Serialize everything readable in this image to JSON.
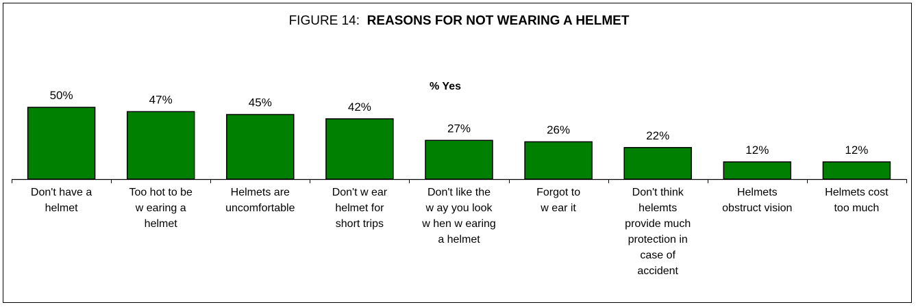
{
  "chart_data": {
    "type": "bar",
    "title_prefix": "FIGURE 14:",
    "title": "REASONS FOR NOT WEARING A HELMET",
    "ylabel": "% Yes",
    "xlabel": "",
    "ylim": [
      0,
      50
    ],
    "grid": false,
    "legend": "none",
    "bar_color": "#008000",
    "categories": [
      [
        "Don't have a",
        "helmet"
      ],
      [
        "Too hot to be",
        "w earing a",
        "helmet"
      ],
      [
        "Helmets are",
        "uncomfortable"
      ],
      [
        "Don't w ear",
        "helmet for",
        "short trips"
      ],
      [
        "Don't like the",
        "w ay you look",
        "w hen w earing",
        "a helmet"
      ],
      [
        "Forgot to",
        "w ear it"
      ],
      [
        "Don't think",
        "helemts",
        "provide much",
        "protection in",
        "case of",
        "accident"
      ],
      [
        "Helmets",
        "obstruct vision"
      ],
      [
        "Helmets cost",
        "too much"
      ]
    ],
    "values": [
      50,
      47,
      45,
      42,
      27,
      26,
      22,
      12,
      12
    ],
    "value_labels": [
      "50%",
      "47%",
      "45%",
      "42%",
      "27%",
      "26%",
      "22%",
      "12%",
      "12%"
    ]
  }
}
